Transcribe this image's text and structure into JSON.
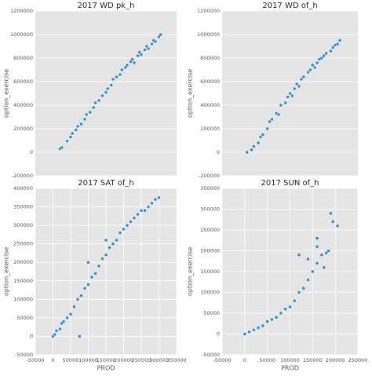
{
  "chart_data": [
    {
      "type": "scatter",
      "title": "2017 WD pk_h",
      "ylabel": "option_exercise",
      "color": "#348abd",
      "grid": true,
      "xlim": [
        -50000,
        350000
      ],
      "ylim": [
        -200000,
        1200000
      ],
      "yticks": [
        -200000,
        0,
        200000,
        400000,
        600000,
        800000,
        1000000,
        1200000
      ],
      "x": [
        20000,
        25000,
        40000,
        50000,
        55000,
        65000,
        70000,
        80000,
        90000,
        95000,
        105000,
        115000,
        120000,
        130000,
        140000,
        150000,
        155000,
        165000,
        170000,
        180000,
        190000,
        195000,
        205000,
        210000,
        220000,
        225000,
        230000,
        240000,
        245000,
        250000,
        260000,
        265000,
        270000,
        280000,
        285000,
        290000,
        300000,
        305000
      ],
      "values": [
        30000,
        40000,
        95000,
        130000,
        160000,
        190000,
        220000,
        240000,
        280000,
        320000,
        340000,
        380000,
        420000,
        440000,
        480000,
        510000,
        540000,
        570000,
        620000,
        640000,
        660000,
        700000,
        720000,
        740000,
        770000,
        790000,
        760000,
        820000,
        850000,
        830000,
        870000,
        900000,
        880000,
        920000,
        950000,
        940000,
        980000,
        1000000
      ]
    },
    {
      "type": "scatter",
      "title": "2017 WD of_h",
      "ylabel": "option_exercise",
      "color": "#348abd",
      "grid": true,
      "xlim": [
        -50000,
        250000
      ],
      "ylim": [
        -200000,
        1200000
      ],
      "yticks": [
        -200000,
        0,
        200000,
        400000,
        600000,
        800000,
        1000000,
        1200000
      ],
      "x": [
        5000,
        15000,
        20000,
        30000,
        35000,
        40000,
        50000,
        55000,
        60000,
        70000,
        75000,
        80000,
        90000,
        95000,
        100000,
        105000,
        110000,
        115000,
        120000,
        125000,
        130000,
        140000,
        145000,
        150000,
        155000,
        160000,
        165000,
        170000,
        175000,
        180000,
        190000,
        195000,
        200000,
        205000,
        210000
      ],
      "values": [
        0,
        20000,
        50000,
        80000,
        130000,
        150000,
        200000,
        260000,
        280000,
        330000,
        320000,
        400000,
        420000,
        470000,
        500000,
        480000,
        540000,
        580000,
        560000,
        620000,
        640000,
        680000,
        700000,
        740000,
        720000,
        760000,
        790000,
        800000,
        820000,
        840000,
        860000,
        890000,
        910000,
        920000,
        950000
      ]
    },
    {
      "type": "scatter",
      "title": "2017 SAT of_h",
      "ylabel": "option_exercise",
      "xlabel": "PROD",
      "color": "#348abd",
      "grid": true,
      "xlim": [
        -50000,
        350000
      ],
      "ylim": [
        -50000,
        400000
      ],
      "xticks": [
        -50000,
        0,
        50000,
        100000,
        150000,
        200000,
        250000,
        300000,
        350000
      ],
      "yticks": [
        -50000,
        0,
        50000,
        100000,
        150000,
        200000,
        250000,
        300000,
        350000,
        400000
      ],
      "x": [
        0,
        5000,
        10000,
        20000,
        25000,
        30000,
        40000,
        50000,
        60000,
        70000,
        75000,
        80000,
        90000,
        100000,
        110000,
        120000,
        130000,
        140000,
        150000,
        160000,
        170000,
        180000,
        190000,
        200000,
        210000,
        220000,
        230000,
        240000,
        250000,
        260000,
        270000,
        280000,
        290000,
        300000,
        100000,
        150000
      ],
      "values": [
        0,
        5000,
        15000,
        20000,
        35000,
        40000,
        50000,
        60000,
        80000,
        100000,
        0,
        110000,
        130000,
        140000,
        160000,
        170000,
        190000,
        210000,
        220000,
        240000,
        250000,
        260000,
        280000,
        290000,
        300000,
        310000,
        320000,
        330000,
        340000,
        340000,
        350000,
        360000,
        370000,
        375000,
        200000,
        260000
      ]
    },
    {
      "type": "scatter",
      "title": "2017 SUN of_h",
      "ylabel": "option_exercise",
      "xlabel": "PROD",
      "color": "#348abd",
      "grid": true,
      "xlim": [
        -50000,
        250000
      ],
      "ylim": [
        -50000,
        350000
      ],
      "xticks": [
        -50000,
        0,
        50000,
        100000,
        150000,
        200000,
        250000
      ],
      "yticks": [
        -50000,
        0,
        50000,
        100000,
        150000,
        200000,
        250000,
        300000,
        350000
      ],
      "x": [
        0,
        10000,
        20000,
        30000,
        40000,
        50000,
        60000,
        70000,
        80000,
        90000,
        100000,
        110000,
        120000,
        130000,
        140000,
        150000,
        160000,
        170000,
        175000,
        160000,
        180000,
        185000,
        190000,
        195000,
        205000,
        120000,
        140000,
        160000
      ],
      "values": [
        0,
        5000,
        10000,
        15000,
        20000,
        30000,
        35000,
        40000,
        50000,
        60000,
        65000,
        80000,
        100000,
        110000,
        130000,
        150000,
        170000,
        190000,
        160000,
        210000,
        195000,
        200000,
        290000,
        270000,
        260000,
        190000,
        180000,
        230000
      ]
    }
  ]
}
